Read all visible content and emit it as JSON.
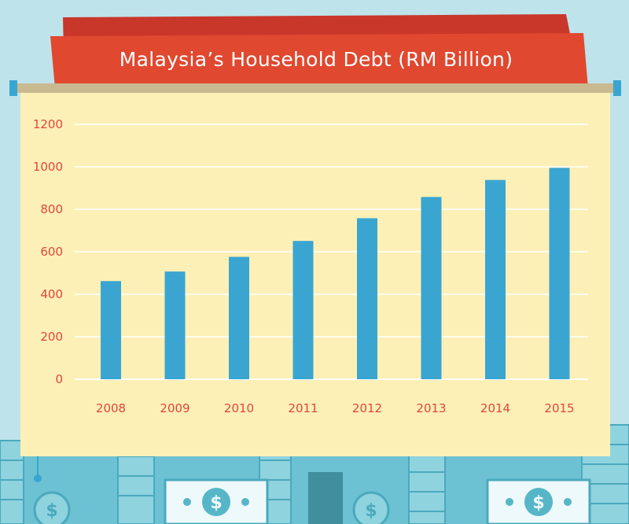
{
  "colors": {
    "background": "#bfe3ea",
    "banner": "#e0482f",
    "banner_back": "#c9372b",
    "board": "#fdf0b6",
    "bar": "#3aa5d1",
    "tick_text": "#e2463a",
    "money": "#56b6c8"
  },
  "chart_data": {
    "type": "bar",
    "title": "Malaysia’s Household Debt (RM Billion)",
    "xlabel": "",
    "ylabel": "",
    "categories": [
      "2008",
      "2009",
      "2010",
      "2011",
      "2012",
      "2013",
      "2014",
      "2015"
    ],
    "values": [
      462,
      507,
      576,
      651,
      758,
      858,
      938,
      995
    ],
    "ylim": [
      0,
      1200
    ],
    "yticks": [
      0,
      200,
      400,
      600,
      800,
      1000,
      1200
    ],
    "grid": true,
    "legend": "none"
  },
  "decor": {
    "icons": [
      "dollar-bill-icon",
      "dollar-coin-icon",
      "coin-stack-icon"
    ]
  }
}
